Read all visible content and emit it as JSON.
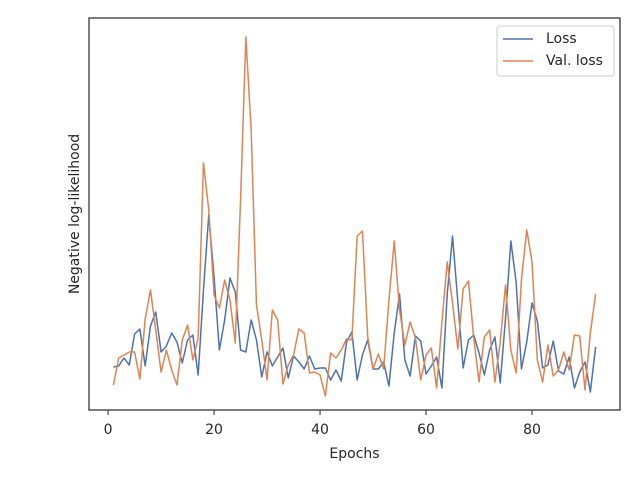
{
  "chart_data": {
    "type": "line",
    "x_label": "Epochs",
    "y_label": "Negative log-likelihood",
    "x": [
      1,
      2,
      3,
      4,
      5,
      6,
      7,
      8,
      9,
      10,
      11,
      12,
      13,
      14,
      15,
      16,
      17,
      18,
      19,
      20,
      21,
      22,
      23,
      24,
      25,
      26,
      27,
      28,
      29,
      30,
      31,
      32,
      33,
      34,
      35,
      36,
      37,
      38,
      39,
      40,
      41,
      42,
      43,
      44,
      45,
      46,
      47,
      48,
      49,
      50,
      51,
      52,
      53,
      54,
      55,
      56,
      57,
      58,
      59,
      60,
      61,
      62,
      63,
      64,
      65,
      66,
      67,
      68,
      69,
      70,
      71,
      72,
      73,
      74,
      75,
      76,
      77,
      78,
      79,
      80,
      81,
      82,
      83,
      84,
      85,
      86,
      87,
      88,
      89,
      90,
      91,
      92
    ],
    "series": [
      {
        "name": "Loss",
        "color": "#4c72b0",
        "values": [
          43,
          44,
          52,
          45,
          76,
          81,
          44,
          84,
          98,
          58,
          64,
          77,
          68,
          47,
          70,
          75,
          35,
          120,
          195,
          133,
          60,
          90,
          132,
          118,
          60,
          58,
          90,
          70,
          33,
          58,
          44,
          53,
          62,
          32,
          54,
          48,
          41,
          54,
          41,
          42,
          42,
          30,
          40,
          29,
          68,
          78,
          30,
          55,
          70,
          41,
          41,
          48,
          24,
          77,
          116,
          50,
          34,
          74,
          69,
          36,
          44,
          53,
          22,
          116,
          174,
          108,
          42,
          70,
          75,
          57,
          35,
          60,
          73,
          27,
          92,
          169,
          128,
          41,
          68,
          107,
          89,
          42,
          45,
          69,
          39,
          36,
          53,
          22,
          38,
          48,
          18,
          63
        ]
      },
      {
        "name": "Val. loss",
        "color": "#dd8452",
        "values": [
          25,
          52,
          55,
          58,
          58,
          31,
          91,
          120,
          80,
          38,
          60,
          40,
          25,
          70,
          85,
          50,
          72,
          247,
          200,
          115,
          102,
          130,
          110,
          67,
          210,
          373,
          280,
          105,
          70,
          30,
          100,
          90,
          26,
          45,
          55,
          81,
          77,
          37,
          38,
          35,
          14,
          57,
          52,
          60,
          71,
          70,
          174,
          179,
          73,
          41,
          56,
          41,
          110,
          169,
          100,
          65,
          88,
          72,
          30,
          55,
          62,
          22,
          88,
          148,
          107,
          61,
          121,
          129,
          72,
          28,
          73,
          80,
          28,
          68,
          125,
          60,
          37,
          130,
          180,
          148,
          50,
          28,
          65,
          34,
          40,
          58,
          40,
          75,
          74,
          20,
          77,
          116
        ]
      }
    ],
    "xlim": [
      -3.6,
      96.6
    ],
    "xticks": [
      0,
      20,
      40,
      60,
      80
    ],
    "ylim": [
      0,
      392
    ],
    "legend": "upper right"
  }
}
